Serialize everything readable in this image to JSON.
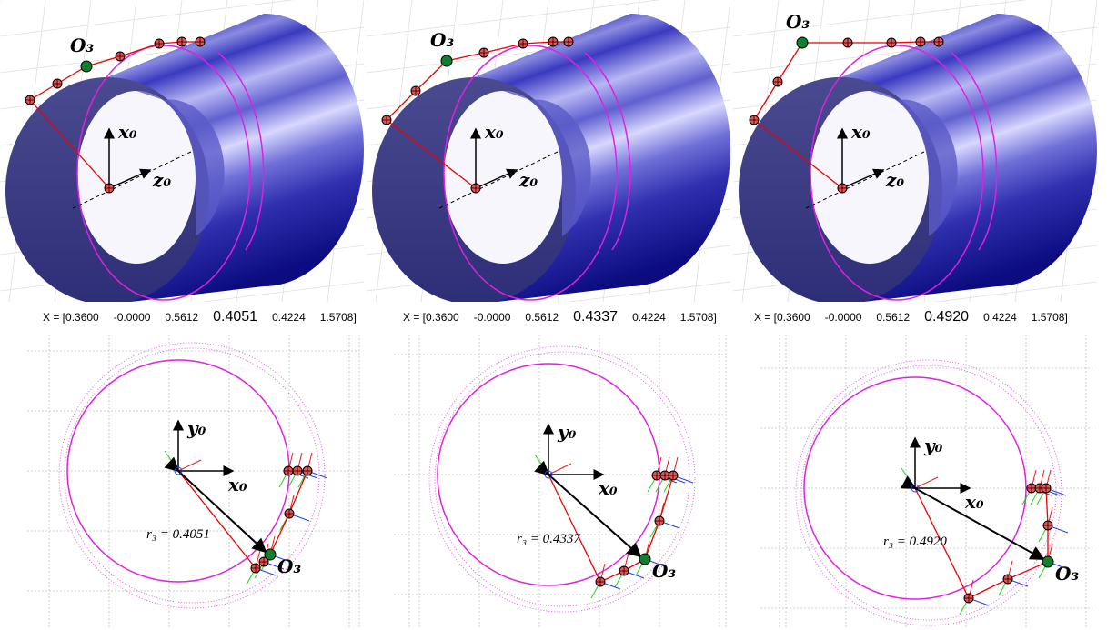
{
  "panels": [
    {
      "top": {
        "o3": "O₃",
        "x0": "x₀",
        "z0": "z₀"
      },
      "caption": {
        "prefix": "X = [0.3600",
        "items": [
          "-0.0000",
          "0.5612",
          "0.4051",
          "0.4224",
          "1.5708]"
        ]
      },
      "bottom": {
        "y0": "y₀",
        "x0": "x₀",
        "o3": "O₃",
        "r3": "r₃ = 0.4051"
      }
    },
    {
      "top": {
        "o3": "O₃",
        "x0": "x₀",
        "z0": "z₀"
      },
      "caption": {
        "prefix": "X = [0.3600",
        "items": [
          "-0.0000",
          "0.5612",
          "0.4337",
          "0.4224",
          "1.5708]"
        ]
      },
      "bottom": {
        "y0": "y₀",
        "x0": "x₀",
        "o3": "O₃",
        "r3": "r₃ = 0.4337"
      }
    },
    {
      "top": {
        "o3": "O₃",
        "x0": "x₀",
        "z0": "z₀"
      },
      "caption": {
        "prefix": "X = [0.3600",
        "items": [
          "-0.0000",
          "0.5612",
          "0.4920",
          "0.4224",
          "1.5708]"
        ]
      },
      "bottom": {
        "y0": "y₀",
        "x0": "x₀",
        "o3": "O₃",
        "r3": "r₃ = 0.4920"
      }
    }
  ]
}
